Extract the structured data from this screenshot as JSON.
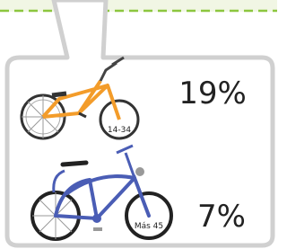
{
  "items": [
    {
      "age_label": "14-34",
      "percent": "19%"
    },
    {
      "age_label": "Más 45",
      "percent": "7%"
    }
  ]
}
